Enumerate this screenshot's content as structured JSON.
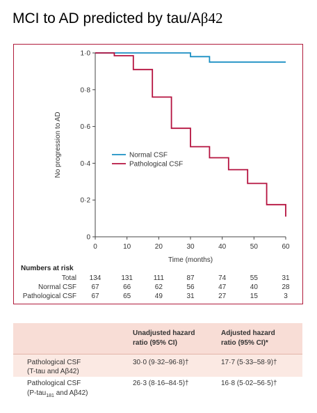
{
  "page": {
    "title_text": "MCI  to AD predicted by tau/A",
    "title_beta": "β42"
  },
  "chart_data": {
    "type": "line",
    "xlabel": "Time (months)",
    "ylabel": "No progression to AD",
    "x_ticks": [
      0,
      10,
      20,
      30,
      40,
      50,
      60
    ],
    "y_ticks": [
      "0",
      "0·2",
      "0·4",
      "0·6",
      "0·8",
      "1·0"
    ],
    "y_tick_values": [
      0,
      0.2,
      0.4,
      0.6,
      0.8,
      1.0
    ],
    "xlim": [
      0,
      60
    ],
    "ylim": [
      0,
      1.0
    ],
    "grid": false,
    "legend_position": "center",
    "series": [
      {
        "name": "Normal CSF",
        "color": "#1a8fc3",
        "x": [
          0,
          30,
          30,
          36,
          36,
          60
        ],
        "y": [
          1.0,
          1.0,
          0.98,
          0.98,
          0.95,
          0.95
        ]
      },
      {
        "name": "Pathological CSF",
        "color": "#b5123f",
        "x": [
          0,
          6,
          6,
          12,
          12,
          18,
          18,
          24,
          24,
          30,
          30,
          36,
          36,
          42,
          42,
          48,
          48,
          54,
          54,
          60,
          60
        ],
        "y": [
          1.0,
          1.0,
          0.985,
          0.985,
          0.91,
          0.91,
          0.76,
          0.76,
          0.59,
          0.59,
          0.49,
          0.49,
          0.43,
          0.43,
          0.365,
          0.365,
          0.29,
          0.29,
          0.175,
          0.175,
          0.11
        ]
      }
    ],
    "risk_table": {
      "title": "Numbers at risk",
      "rows": [
        {
          "label": "Total",
          "values": [
            "134",
            "131",
            "111",
            "87",
            "74",
            "55",
            "31"
          ]
        },
        {
          "label": "Normal CSF",
          "values": [
            "67",
            "66",
            "62",
            "56",
            "47",
            "40",
            "28"
          ]
        },
        {
          "label": "Pathological CSF",
          "values": [
            "67",
            "65",
            "49",
            "31",
            "27",
            "15",
            "3"
          ]
        }
      ]
    }
  },
  "hazard_table": {
    "col1_header_line1": "Unadjusted hazard",
    "col1_header_line2": "ratio (95% CI)",
    "col2_header_line1": "Adjusted hazard",
    "col2_header_line2": "ratio  (95% CI)*",
    "rows": [
      {
        "label_line1": "Pathological CSF",
        "label_line2": "(T-tau and Aβ42)",
        "unadjusted": "30·0 (9·32–96·8)†",
        "adjusted": "17·7 (5·33–58·9)†"
      },
      {
        "label_line1": "Pathological CSF",
        "label_line2": "(P-tau",
        "label_sub": "181",
        "label_line2_end": " and Aβ42)",
        "unadjusted": "26·3 (8·16–84·5)†",
        "adjusted": "16·8 (5·02–56·5)†"
      }
    ]
  }
}
